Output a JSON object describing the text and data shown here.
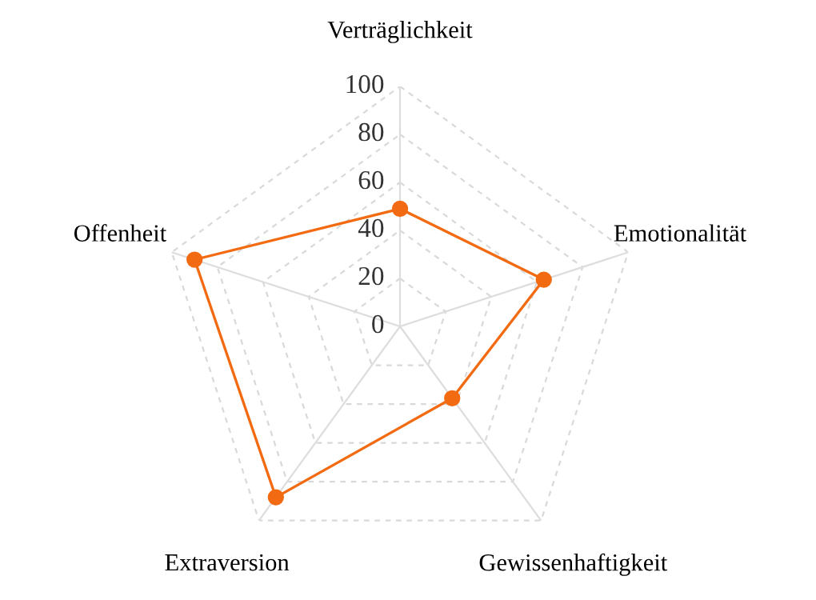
{
  "chart_data": {
    "type": "radar",
    "categories": [
      "Verträglichkeit",
      "Emotionalität",
      "Gewissenhaftigkeit",
      "Extraversion",
      "Offenheit"
    ],
    "series": [
      {
        "color": "#f26b12",
        "values": [
          49,
          63,
          37,
          88,
          90
        ]
      }
    ],
    "ylim": [
      0,
      100
    ],
    "yticks": [
      0,
      20,
      40,
      60,
      80,
      100
    ],
    "grid": true,
    "marker": "circle",
    "line_style": "solid"
  }
}
